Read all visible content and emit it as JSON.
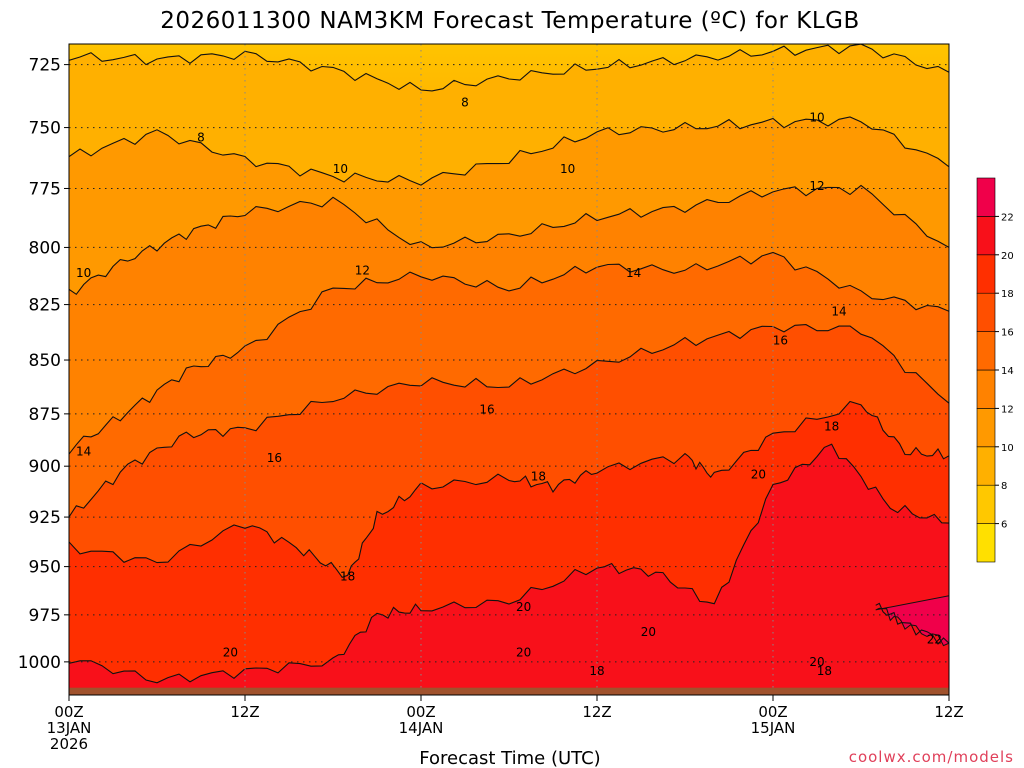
{
  "chart_data": {
    "type": "heatmap",
    "title": "2026011300 NAM3KM Forecast Temperature (ºC) for KLGB",
    "xlabel": "Forecast Time (UTC)",
    "ylabel": "",
    "credit": "coolwx.com/models",
    "x_range_hours": [
      0,
      60
    ],
    "y_range_hpa": [
      1018,
      717
    ],
    "y_ticks": [
      725,
      750,
      775,
      800,
      825,
      850,
      875,
      900,
      925,
      950,
      975,
      1000
    ],
    "x_ticks": [
      {
        "hour": 0,
        "lines": [
          "00Z",
          "13JAN",
          "2026"
        ]
      },
      {
        "hour": 12,
        "lines": [
          "12Z"
        ]
      },
      {
        "hour": 24,
        "lines": [
          "00Z",
          "14JAN"
        ]
      },
      {
        "hour": 36,
        "lines": [
          "12Z"
        ]
      },
      {
        "hour": 48,
        "lines": [
          "00Z",
          "15JAN"
        ]
      },
      {
        "hour": 60,
        "lines": [
          "12Z"
        ]
      }
    ],
    "grid": true,
    "colorbar": {
      "placement": "right",
      "levels": [
        4,
        6,
        8,
        10,
        12,
        14,
        16,
        18,
        20,
        22,
        24
      ],
      "labels": [
        6,
        8,
        10,
        12,
        14,
        16,
        18,
        20,
        22
      ],
      "colors": [
        "#ffe000",
        "#ffc800",
        "#ffb000",
        "#ff9900",
        "#ff8200",
        "#ff6a00",
        "#ff4f00",
        "#ff2f00",
        "#f8101a",
        "#f0004a"
      ]
    },
    "contours": [
      {
        "value": 8,
        "pressure_at_hours": [
          [
            0,
            722
          ],
          [
            6,
            723
          ],
          [
            12,
            721
          ],
          [
            18,
            727
          ],
          [
            24,
            735
          ],
          [
            30,
            730
          ],
          [
            36,
            726
          ],
          [
            42,
            723
          ],
          [
            48,
            720
          ],
          [
            54,
            718
          ],
          [
            60,
            728
          ]
        ]
      },
      {
        "value": 10,
        "pressure_at_hours": [
          [
            0,
            762
          ],
          [
            6,
            752
          ],
          [
            12,
            763
          ],
          [
            18,
            770
          ],
          [
            24,
            772
          ],
          [
            30,
            763
          ],
          [
            36,
            752
          ],
          [
            42,
            750
          ],
          [
            48,
            748
          ],
          [
            54,
            747
          ],
          [
            60,
            766
          ]
        ]
      },
      {
        "value": 12,
        "pressure_at_hours": [
          [
            0,
            820
          ],
          [
            4,
            805
          ],
          [
            8,
            794
          ],
          [
            12,
            785
          ],
          [
            18,
            780
          ],
          [
            24,
            800
          ],
          [
            30,
            795
          ],
          [
            36,
            787
          ],
          [
            42,
            783
          ],
          [
            48,
            776
          ],
          [
            54,
            775
          ],
          [
            60,
            800
          ]
        ]
      },
      {
        "value": 14,
        "pressure_at_hours": [
          [
            0,
            892
          ],
          [
            4,
            874
          ],
          [
            8,
            855
          ],
          [
            12,
            845
          ],
          [
            18,
            818
          ],
          [
            24,
            812
          ],
          [
            30,
            818
          ],
          [
            36,
            808
          ],
          [
            42,
            810
          ],
          [
            48,
            803
          ],
          [
            54,
            820
          ],
          [
            60,
            828
          ]
        ]
      },
      {
        "value": 16,
        "pressure_at_hours": [
          [
            0,
            925
          ],
          [
            4,
            900
          ],
          [
            8,
            885
          ],
          [
            12,
            882
          ],
          [
            18,
            868
          ],
          [
            24,
            860
          ],
          [
            30,
            862
          ],
          [
            36,
            852
          ],
          [
            42,
            842
          ],
          [
            48,
            835
          ],
          [
            54,
            836
          ],
          [
            60,
            870
          ]
        ]
      },
      {
        "value": 18,
        "pressure_at_hours": [
          [
            0,
            940
          ],
          [
            6,
            948
          ],
          [
            12,
            928
          ],
          [
            16,
            942
          ],
          [
            19,
            955
          ],
          [
            21,
            925
          ],
          [
            24,
            910
          ],
          [
            30,
            906
          ],
          [
            33,
            910
          ],
          [
            36,
            902
          ],
          [
            42,
            895
          ],
          [
            44,
            905
          ],
          [
            48,
            885
          ],
          [
            54,
            870
          ],
          [
            57,
            893
          ],
          [
            60,
            895
          ]
        ]
      },
      {
        "value": 20,
        "pressure_at_hours": [
          [
            0,
            998
          ],
          [
            6,
            1010
          ],
          [
            12,
            1005
          ],
          [
            18,
            1000
          ],
          [
            21,
            975
          ],
          [
            24,
            972
          ],
          [
            30,
            968
          ],
          [
            36,
            950
          ],
          [
            40,
            953
          ],
          [
            44,
            970
          ],
          [
            48,
            910
          ],
          [
            52,
            890
          ],
          [
            56,
            920
          ],
          [
            60,
            928
          ]
        ]
      },
      {
        "value": 22,
        "pressure_at_hours": [
          [
            55,
            970
          ],
          [
            57,
            980
          ],
          [
            60,
            990
          ]
        ]
      }
    ],
    "contour_labels": [
      {
        "text": "8",
        "hour": 27,
        "hpa": 740
      },
      {
        "text": "8",
        "hour": 9,
        "hpa": 754
      },
      {
        "text": "10",
        "hour": 51,
        "hpa": 746
      },
      {
        "text": "10",
        "hour": 34,
        "hpa": 767
      },
      {
        "text": "10",
        "hour": 18.5,
        "hpa": 767
      },
      {
        "text": "10",
        "hour": 1,
        "hpa": 811
      },
      {
        "text": "12",
        "hour": 51,
        "hpa": 774
      },
      {
        "text": "12",
        "hour": 20,
        "hpa": 810
      },
      {
        "text": "14",
        "hour": 38.5,
        "hpa": 811
      },
      {
        "text": "14",
        "hour": 52.5,
        "hpa": 828
      },
      {
        "text": "14",
        "hour": 1,
        "hpa": 893
      },
      {
        "text": "16",
        "hour": 48.5,
        "hpa": 841
      },
      {
        "text": "16",
        "hour": 14,
        "hpa": 896
      },
      {
        "text": "16",
        "hour": 28.5,
        "hpa": 873
      },
      {
        "text": "18",
        "hour": 52,
        "hpa": 881
      },
      {
        "text": "18",
        "hour": 32,
        "hpa": 905
      },
      {
        "text": "18",
        "hour": 19,
        "hpa": 955
      },
      {
        "text": "18",
        "hour": 36,
        "hpa": 1005
      },
      {
        "text": "18",
        "hour": 51.5,
        "hpa": 1005
      },
      {
        "text": "20",
        "hour": 47,
        "hpa": 904
      },
      {
        "text": "20",
        "hour": 31,
        "hpa": 971
      },
      {
        "text": "20",
        "hour": 39.5,
        "hpa": 984
      },
      {
        "text": "20",
        "hour": 31,
        "hpa": 995
      },
      {
        "text": "20",
        "hour": 11,
        "hpa": 995
      },
      {
        "text": "20",
        "hour": 51,
        "hpa": 1000
      },
      {
        "text": "22",
        "hour": 59,
        "hpa": 988
      }
    ],
    "ground": {
      "color": "#a0522d",
      "hpa": 1014
    }
  }
}
